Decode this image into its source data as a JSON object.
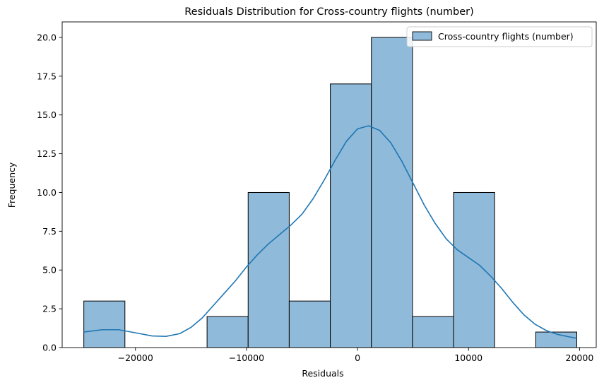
{
  "chart_data": {
    "type": "bar",
    "title": "Residuals Distribution for Cross-country flights (number)",
    "xlabel": "Residuals",
    "ylabel": "Frequency",
    "xlim": [
      -26600,
      21500
    ],
    "ylim": [
      0,
      21
    ],
    "x_ticks": [
      -20000,
      -10000,
      0,
      10000,
      20000
    ],
    "x_tick_labels": [
      "−20000",
      "−10000",
      "0",
      "10000",
      "20000"
    ],
    "y_ticks": [
      0,
      2.5,
      5,
      7.5,
      10,
      12.5,
      15,
      17.5,
      20
    ],
    "y_tick_labels": [
      "0.0",
      "2.5",
      "5.0",
      "7.5",
      "10.0",
      "12.5",
      "15.0",
      "17.5",
      "20.0"
    ],
    "bin_edges": [
      -24650,
      -20950,
      -17250,
      -13550,
      -9850,
      -6150,
      -2450,
      1250,
      4950,
      8650,
      12350,
      16050,
      19750
    ],
    "counts": [
      3,
      0,
      0,
      2,
      10,
      3,
      17,
      20,
      2,
      10,
      0,
      1
    ],
    "kde": {
      "x": [
        -24650,
        -23000,
        -21500,
        -20000,
        -18500,
        -17250,
        -16000,
        -15000,
        -14000,
        -13000,
        -12000,
        -11000,
        -10000,
        -9000,
        -8000,
        -7000,
        -6000,
        -5000,
        -4000,
        -3000,
        -2000,
        -1000,
        0,
        1000,
        2000,
        3000,
        4000,
        5000,
        6000,
        7000,
        8000,
        9000,
        10000,
        11000,
        12000,
        13000,
        14000,
        15000,
        16000,
        17000,
        18000,
        19000,
        19750
      ],
      "y": [
        1.0,
        1.15,
        1.15,
        0.95,
        0.75,
        0.72,
        0.9,
        1.3,
        1.9,
        2.7,
        3.5,
        4.3,
        5.2,
        6.0,
        6.7,
        7.3,
        7.9,
        8.6,
        9.6,
        10.8,
        12.1,
        13.3,
        14.1,
        14.3,
        14.0,
        13.2,
        12.0,
        10.6,
        9.2,
        8.0,
        7.0,
        6.3,
        5.8,
        5.3,
        4.6,
        3.8,
        2.9,
        2.1,
        1.5,
        1.1,
        0.85,
        0.7,
        0.6
      ]
    },
    "legend": {
      "label": "Cross-country flights (number)",
      "position": "top-right"
    },
    "grid": false,
    "colors": {
      "bar_fill": "#8fbad9",
      "bar_edge": "#000000",
      "kde_line": "#1f77b4"
    }
  }
}
